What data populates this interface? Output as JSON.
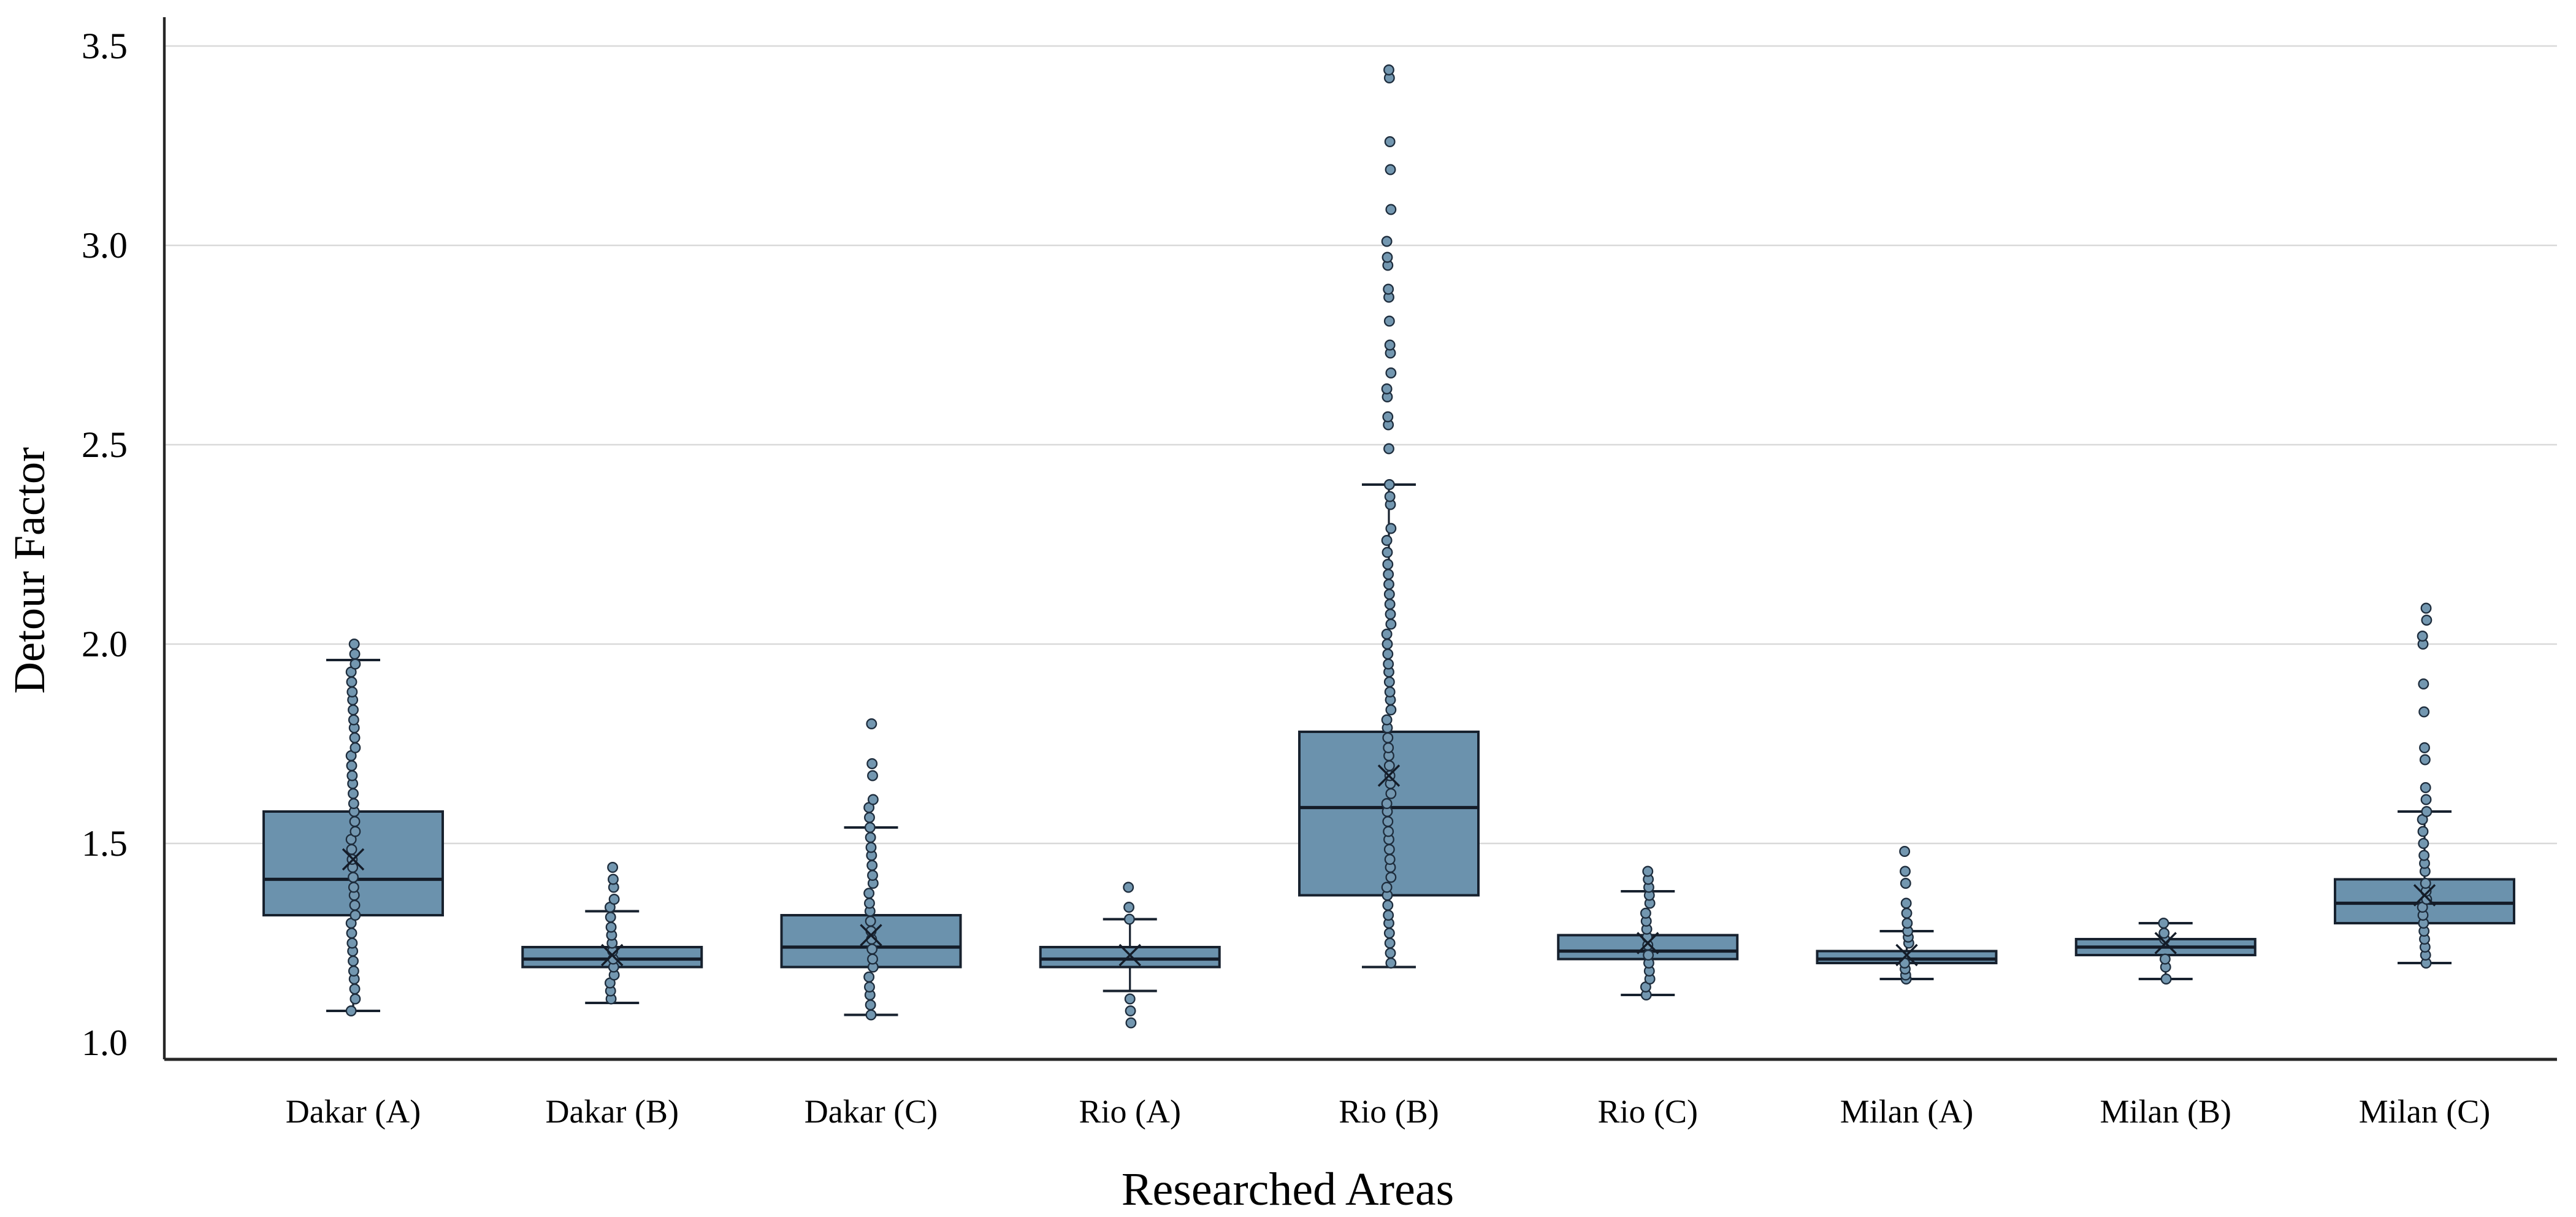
{
  "figure": {
    "background": "#ffffff",
    "description": "Box-and-whisker plot with overlaid data point columns for nine researched areas"
  },
  "chart_data": {
    "type": "box",
    "title": "",
    "xlabel": "Researched Areas",
    "ylabel": "Detour Factor",
    "ylim": [
      0.96,
      3.56
    ],
    "yticks": [
      1.0,
      1.5,
      2.0,
      2.5,
      3.0,
      3.5
    ],
    "ytick_labels": [
      "1.0",
      "1.5",
      "2.0",
      "2.5",
      "3.0",
      "3.5"
    ],
    "grid": "horizontal-at-ticks-above-1.0",
    "legend": "none",
    "categories": [
      "Dakar (A)",
      "Dakar (B)",
      "Dakar (C)",
      "Rio (A)",
      "Rio (B)",
      "Rio (C)",
      "Milan (A)",
      "Milan (B)",
      "Milan (C)"
    ],
    "series": [
      {
        "name": "Dakar (A)",
        "whisker_low": 1.08,
        "q1": 1.32,
        "median": 1.41,
        "mean": 1.46,
        "q3": 1.58,
        "whisker_high": 1.96,
        "points": [
          1.08,
          1.11,
          1.135,
          1.16,
          1.18,
          1.205,
          1.23,
          1.25,
          1.275,
          1.3,
          1.32,
          1.345,
          1.37,
          1.39,
          1.415,
          1.44,
          1.46,
          1.485,
          1.51,
          1.53,
          1.555,
          1.58,
          1.6,
          1.625,
          1.65,
          1.67,
          1.695,
          1.72,
          1.74,
          1.765,
          1.79,
          1.81,
          1.835,
          1.86,
          1.88,
          1.905,
          1.93,
          1.95,
          1.975,
          2.0
        ]
      },
      {
        "name": "Dakar (B)",
        "whisker_low": 1.1,
        "q1": 1.19,
        "median": 1.21,
        "mean": 1.22,
        "q3": 1.24,
        "whisker_high": 1.33,
        "points": [
          1.11,
          1.13,
          1.15,
          1.17,
          1.19,
          1.21,
          1.23,
          1.25,
          1.27,
          1.29,
          1.315,
          1.34,
          1.36,
          1.39,
          1.41,
          1.44
        ]
      },
      {
        "name": "Dakar (C)",
        "whisker_low": 1.07,
        "q1": 1.19,
        "median": 1.24,
        "mean": 1.27,
        "q3": 1.32,
        "whisker_high": 1.54,
        "points": [
          1.07,
          1.095,
          1.12,
          1.14,
          1.165,
          1.19,
          1.21,
          1.235,
          1.26,
          1.28,
          1.305,
          1.33,
          1.35,
          1.375,
          1.4,
          1.42,
          1.445,
          1.47,
          1.49,
          1.515,
          1.54,
          1.565,
          1.59,
          1.61,
          1.67,
          1.7,
          1.8
        ]
      },
      {
        "name": "Rio (A)",
        "whisker_low": 1.13,
        "q1": 1.19,
        "median": 1.21,
        "mean": 1.22,
        "q3": 1.24,
        "whisker_high": 1.31,
        "points": [
          1.05,
          1.08,
          1.11,
          1.31,
          1.34,
          1.39
        ]
      },
      {
        "name": "Rio (B)",
        "whisker_low": 1.19,
        "q1": 1.37,
        "median": 1.59,
        "mean": 1.67,
        "q3": 1.78,
        "whisker_high": 2.4,
        "points": [
          1.2,
          1.225,
          1.25,
          1.275,
          1.3,
          1.32,
          1.345,
          1.37,
          1.39,
          1.415,
          1.44,
          1.46,
          1.485,
          1.51,
          1.53,
          1.555,
          1.58,
          1.6,
          1.625,
          1.65,
          1.67,
          1.695,
          1.72,
          1.74,
          1.765,
          1.79,
          1.81,
          1.835,
          1.86,
          1.88,
          1.905,
          1.93,
          1.95,
          1.975,
          2.0,
          2.025,
          2.05,
          2.075,
          2.1,
          2.125,
          2.15,
          2.175,
          2.2,
          2.23,
          2.26,
          2.29,
          2.35,
          2.37,
          2.4,
          2.49,
          2.55,
          2.57,
          2.62,
          2.64,
          2.68,
          2.73,
          2.75,
          2.81,
          2.87,
          2.89,
          2.95,
          2.97,
          3.01,
          3.09,
          3.19,
          3.26,
          3.42,
          3.44
        ]
      },
      {
        "name": "Rio (C)",
        "whisker_low": 1.12,
        "q1": 1.21,
        "median": 1.23,
        "mean": 1.25,
        "q3": 1.27,
        "whisker_high": 1.38,
        "points": [
          1.12,
          1.14,
          1.16,
          1.18,
          1.2,
          1.22,
          1.245,
          1.265,
          1.285,
          1.305,
          1.325,
          1.35,
          1.37,
          1.39,
          1.41,
          1.43
        ]
      },
      {
        "name": "Milan (A)",
        "whisker_low": 1.16,
        "q1": 1.2,
        "median": 1.21,
        "mean": 1.22,
        "q3": 1.23,
        "whisker_high": 1.28,
        "points": [
          1.16,
          1.17,
          1.185,
          1.2,
          1.25,
          1.265,
          1.28,
          1.3,
          1.325,
          1.35,
          1.4,
          1.43,
          1.48
        ]
      },
      {
        "name": "Milan (B)",
        "whisker_low": 1.16,
        "q1": 1.22,
        "median": 1.24,
        "mean": 1.25,
        "q3": 1.26,
        "whisker_high": 1.3,
        "points": [
          1.16,
          1.19,
          1.21,
          1.26,
          1.275,
          1.3
        ]
      },
      {
        "name": "Milan (C)",
        "whisker_low": 1.2,
        "q1": 1.3,
        "median": 1.35,
        "mean": 1.37,
        "q3": 1.41,
        "whisker_high": 1.58,
        "points": [
          1.2,
          1.22,
          1.24,
          1.26,
          1.28,
          1.3,
          1.32,
          1.34,
          1.36,
          1.38,
          1.4,
          1.43,
          1.45,
          1.47,
          1.5,
          1.53,
          1.56,
          1.58,
          1.61,
          1.64,
          1.71,
          1.74,
          1.83,
          1.9,
          2.0,
          2.02,
          2.06,
          2.09
        ]
      }
    ],
    "colors": {
      "box_fill": "#6b92ad",
      "box_stroke": "#17212e",
      "whisker_stroke": "#17212e",
      "median_stroke": "#141c28",
      "mean_marker_stroke": "#141c28",
      "point_fill": "#7397b0",
      "point_stroke": "#1e2d3d",
      "gridline": "#d9d9d9",
      "axis_line": "#262626",
      "text": "#000000"
    },
    "marker_notes": {
      "mean_marker": "x-cross",
      "points_style": "stacked circles column at category center"
    }
  }
}
